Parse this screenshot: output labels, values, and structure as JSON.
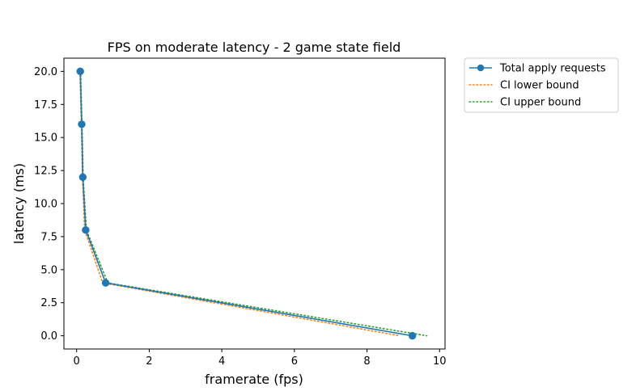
{
  "chart_data": {
    "type": "line",
    "title": "FPS on moderate latency - 2 game state field",
    "xlabel": "framerate (fps)",
    "ylabel": "latency (ms)",
    "xlim": [
      -0.35,
      10.15
    ],
    "ylim": [
      -1.0,
      21.0
    ],
    "x_ticks": [
      0,
      2,
      4,
      6,
      8,
      10
    ],
    "x_tick_labels": [
      "0",
      "2",
      "4",
      "6",
      "8",
      "10"
    ],
    "y_ticks": [
      0,
      2.5,
      5,
      7.5,
      10,
      12.5,
      15,
      17.5,
      20
    ],
    "y_tick_labels": [
      "0.0",
      "2.5",
      "5.0",
      "7.5",
      "10.0",
      "12.5",
      "15.0",
      "17.5",
      "20.0"
    ],
    "grid": false,
    "legend_position": "outside-top-right",
    "series": [
      {
        "name": "Total apply requests",
        "style": "solid",
        "marker": "circle",
        "color": "#1f77b4",
        "points": [
          {
            "x": 0.1,
            "y": 20
          },
          {
            "x": 0.14,
            "y": 16
          },
          {
            "x": 0.17,
            "y": 12
          },
          {
            "x": 0.25,
            "y": 8
          },
          {
            "x": 0.8,
            "y": 4
          },
          {
            "x": 9.25,
            "y": 0
          }
        ]
      },
      {
        "name": "CI lower bound",
        "style": "dotted",
        "marker": "none",
        "color": "#ff7f0e",
        "points": [
          {
            "x": 0.09,
            "y": 20
          },
          {
            "x": 0.13,
            "y": 16
          },
          {
            "x": 0.16,
            "y": 12
          },
          {
            "x": 0.22,
            "y": 8
          },
          {
            "x": 0.72,
            "y": 4
          },
          {
            "x": 8.9,
            "y": 0
          }
        ]
      },
      {
        "name": "CI upper bound",
        "style": "dotted",
        "marker": "none",
        "color": "#2ca02c",
        "points": [
          {
            "x": 0.11,
            "y": 20
          },
          {
            "x": 0.15,
            "y": 16
          },
          {
            "x": 0.18,
            "y": 12
          },
          {
            "x": 0.27,
            "y": 8
          },
          {
            "x": 0.86,
            "y": 4
          },
          {
            "x": 9.65,
            "y": 0
          }
        ]
      }
    ]
  }
}
